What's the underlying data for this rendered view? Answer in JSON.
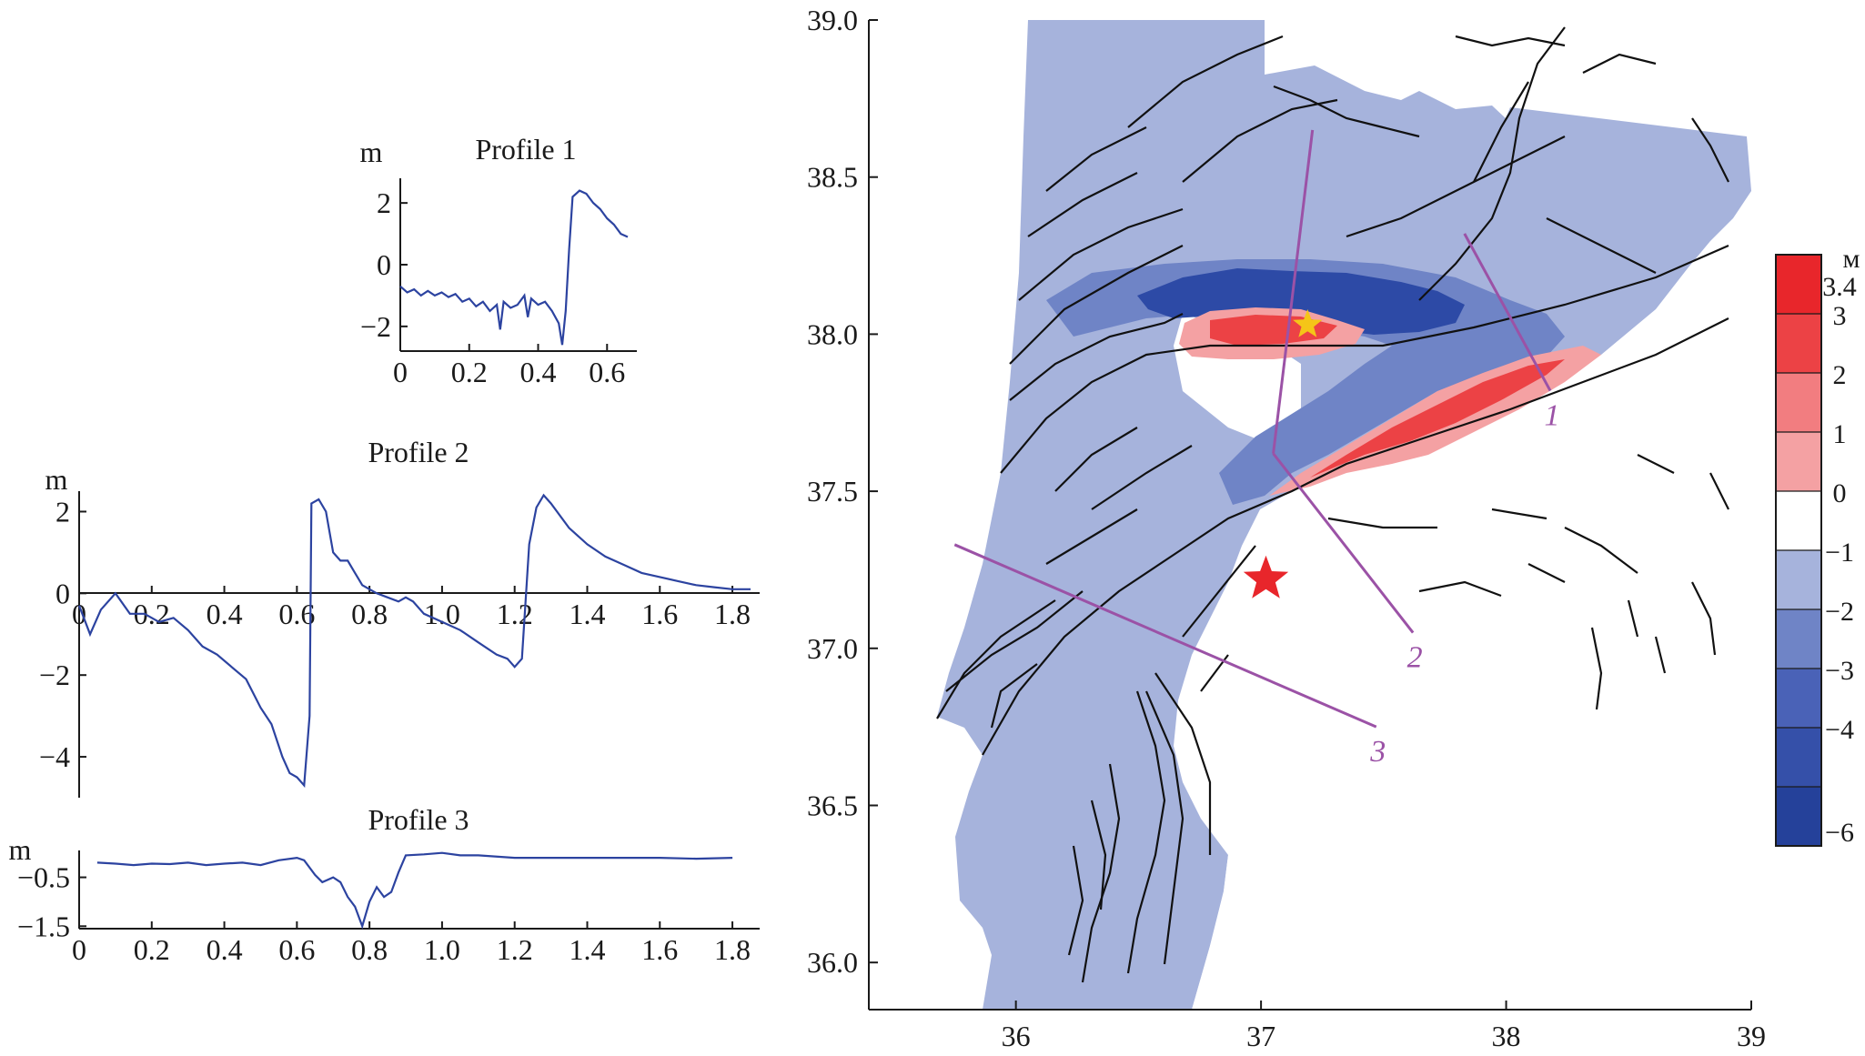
{
  "profiles": [
    {
      "title": "Profile 1",
      "unit": "m",
      "x_ticks": [
        0,
        0.2,
        0.4,
        0.6
      ],
      "x_tick_labels": [
        "0",
        "0.2",
        "0.4",
        "0.6"
      ],
      "y_ticks": [
        2,
        0,
        -2
      ],
      "y_tick_labels": [
        "2",
        "0",
        "−2"
      ],
      "xlim": [
        0,
        0.66
      ],
      "ylim": [
        -2.8,
        2.8
      ],
      "series": [
        [
          0,
          -0.7
        ],
        [
          0.02,
          -0.9
        ],
        [
          0.04,
          -0.8
        ],
        [
          0.06,
          -1.0
        ],
        [
          0.08,
          -0.85
        ],
        [
          0.1,
          -1.0
        ],
        [
          0.12,
          -0.9
        ],
        [
          0.14,
          -1.05
        ],
        [
          0.16,
          -0.95
        ],
        [
          0.18,
          -1.2
        ],
        [
          0.2,
          -1.1
        ],
        [
          0.22,
          -1.35
        ],
        [
          0.24,
          -1.2
        ],
        [
          0.26,
          -1.5
        ],
        [
          0.28,
          -1.3
        ],
        [
          0.29,
          -2.1
        ],
        [
          0.3,
          -1.2
        ],
        [
          0.32,
          -1.4
        ],
        [
          0.34,
          -1.3
        ],
        [
          0.36,
          -1.0
        ],
        [
          0.37,
          -1.7
        ],
        [
          0.38,
          -1.1
        ],
        [
          0.4,
          -1.3
        ],
        [
          0.42,
          -1.2
        ],
        [
          0.44,
          -1.5
        ],
        [
          0.46,
          -1.9
        ],
        [
          0.47,
          -2.6
        ],
        [
          0.48,
          -1.5
        ],
        [
          0.49,
          0.5
        ],
        [
          0.5,
          2.2
        ],
        [
          0.52,
          2.4
        ],
        [
          0.54,
          2.3
        ],
        [
          0.56,
          2.0
        ],
        [
          0.58,
          1.8
        ],
        [
          0.6,
          1.5
        ],
        [
          0.62,
          1.3
        ],
        [
          0.64,
          1.0
        ],
        [
          0.66,
          0.9
        ]
      ]
    },
    {
      "title": "Profile 2",
      "unit": "m",
      "x_ticks": [
        0,
        0.2,
        0.4,
        0.6,
        0.8,
        1.0,
        1.2,
        1.4,
        1.6,
        1.8
      ],
      "x_tick_labels": [
        "0",
        "0.2",
        "0.4",
        "0.6",
        "0.8",
        "1.0",
        "1.2",
        "1.4",
        "1.6",
        "1.8"
      ],
      "y_ticks": [
        2,
        0,
        -2,
        -4
      ],
      "y_tick_labels": [
        "2",
        "0",
        "−2",
        "−4"
      ],
      "xlim": [
        0,
        1.85
      ],
      "ylim": [
        -5.0,
        2.5
      ],
      "series": [
        [
          0,
          -0.3
        ],
        [
          0.03,
          -1.0
        ],
        [
          0.06,
          -0.4
        ],
        [
          0.1,
          0.0
        ],
        [
          0.14,
          -0.5
        ],
        [
          0.18,
          -0.5
        ],
        [
          0.22,
          -0.7
        ],
        [
          0.26,
          -0.6
        ],
        [
          0.3,
          -0.9
        ],
        [
          0.34,
          -1.3
        ],
        [
          0.38,
          -1.5
        ],
        [
          0.42,
          -1.8
        ],
        [
          0.46,
          -2.1
        ],
        [
          0.5,
          -2.8
        ],
        [
          0.53,
          -3.2
        ],
        [
          0.56,
          -4.0
        ],
        [
          0.58,
          -4.4
        ],
        [
          0.6,
          -4.5
        ],
        [
          0.62,
          -4.7
        ],
        [
          0.635,
          -3.0
        ],
        [
          0.64,
          2.2
        ],
        [
          0.66,
          2.3
        ],
        [
          0.68,
          2.0
        ],
        [
          0.7,
          1.0
        ],
        [
          0.72,
          0.8
        ],
        [
          0.74,
          0.8
        ],
        [
          0.76,
          0.5
        ],
        [
          0.78,
          0.2
        ],
        [
          0.8,
          0.1
        ],
        [
          0.82,
          0.0
        ],
        [
          0.85,
          -0.1
        ],
        [
          0.88,
          -0.2
        ],
        [
          0.9,
          -0.1
        ],
        [
          0.92,
          -0.2
        ],
        [
          0.95,
          -0.5
        ],
        [
          1.0,
          -0.7
        ],
        [
          1.05,
          -0.9
        ],
        [
          1.1,
          -1.2
        ],
        [
          1.15,
          -1.5
        ],
        [
          1.18,
          -1.6
        ],
        [
          1.2,
          -1.8
        ],
        [
          1.22,
          -1.6
        ],
        [
          1.24,
          1.2
        ],
        [
          1.26,
          2.1
        ],
        [
          1.28,
          2.4
        ],
        [
          1.3,
          2.2
        ],
        [
          1.35,
          1.6
        ],
        [
          1.4,
          1.2
        ],
        [
          1.45,
          0.9
        ],
        [
          1.5,
          0.7
        ],
        [
          1.55,
          0.5
        ],
        [
          1.6,
          0.4
        ],
        [
          1.65,
          0.3
        ],
        [
          1.7,
          0.2
        ],
        [
          1.75,
          0.15
        ],
        [
          1.8,
          0.1
        ],
        [
          1.85,
          0.1
        ]
      ]
    },
    {
      "title": "Profile 3",
      "unit": "m",
      "x_ticks": [
        0,
        0.2,
        0.4,
        0.6,
        0.8,
        1.0,
        1.2,
        1.4,
        1.6,
        1.8
      ],
      "x_tick_labels": [
        "0",
        "0.2",
        "0.4",
        "0.6",
        "0.8",
        "1.0",
        "1.2",
        "1.4",
        "1.6",
        "1.8"
      ],
      "y_ticks": [
        -0.5,
        -1.5
      ],
      "y_tick_labels": [
        "−0.5",
        "−1.5"
      ],
      "xlim": [
        0,
        1.85
      ],
      "ylim": [
        -1.55,
        0.05
      ],
      "series": [
        [
          0.05,
          -0.2
        ],
        [
          0.1,
          -0.22
        ],
        [
          0.15,
          -0.25
        ],
        [
          0.2,
          -0.22
        ],
        [
          0.25,
          -0.23
        ],
        [
          0.3,
          -0.2
        ],
        [
          0.35,
          -0.25
        ],
        [
          0.4,
          -0.22
        ],
        [
          0.45,
          -0.2
        ],
        [
          0.5,
          -0.25
        ],
        [
          0.55,
          -0.15
        ],
        [
          0.6,
          -0.1
        ],
        [
          0.62,
          -0.15
        ],
        [
          0.65,
          -0.45
        ],
        [
          0.67,
          -0.6
        ],
        [
          0.7,
          -0.5
        ],
        [
          0.72,
          -0.6
        ],
        [
          0.74,
          -0.9
        ],
        [
          0.76,
          -1.1
        ],
        [
          0.78,
          -1.5
        ],
        [
          0.8,
          -1.0
        ],
        [
          0.82,
          -0.7
        ],
        [
          0.84,
          -0.9
        ],
        [
          0.86,
          -0.8
        ],
        [
          0.88,
          -0.4
        ],
        [
          0.9,
          -0.05
        ],
        [
          0.95,
          -0.03
        ],
        [
          1.0,
          0.0
        ],
        [
          1.05,
          -0.05
        ],
        [
          1.1,
          -0.05
        ],
        [
          1.2,
          -0.1
        ],
        [
          1.3,
          -0.1
        ],
        [
          1.4,
          -0.1
        ],
        [
          1.5,
          -0.1
        ],
        [
          1.6,
          -0.1
        ],
        [
          1.7,
          -0.12
        ],
        [
          1.8,
          -0.1
        ]
      ]
    }
  ],
  "map": {
    "y_ticks": [
      39.0,
      38.5,
      38.0,
      37.5,
      37.0,
      36.5,
      36.0
    ],
    "y_tick_labels": [
      "39.0",
      "38.5",
      "38.0",
      "37.5",
      "37.0",
      "36.5",
      "36.0"
    ],
    "x_ticks": [
      36,
      37,
      38,
      39
    ],
    "x_tick_labels": [
      "36",
      "37",
      "38",
      "39"
    ],
    "xlim": [
      35.4,
      39.0
    ],
    "ylim": [
      35.85,
      39.0
    ],
    "profile_lines": [
      {
        "label": "1",
        "start": [
          37.83,
          38.32
        ],
        "end": [
          38.18,
          37.82
        ]
      },
      {
        "label": "2",
        "start": [
          37.05,
          37.62
        ],
        "end": [
          37.62,
          37.05
        ]
      },
      {
        "label": "3",
        "start": [
          35.75,
          37.33
        ],
        "end": [
          37.47,
          36.75
        ]
      },
      {
        "label": "",
        "start": [
          37.21,
          38.65
        ],
        "end": [
          37.05,
          37.62
        ]
      }
    ],
    "epicenters": [
      {
        "name": "main",
        "lon": 37.02,
        "lat": 37.22,
        "color": "#e8262b"
      },
      {
        "name": "second",
        "lon": 37.19,
        "lat": 38.03,
        "color": "#f5c518"
      }
    ],
    "colors": {
      "profile_line": "#9b52a6",
      "fault": "#111111"
    }
  },
  "colorbar": {
    "unit": "м",
    "tick_labels": [
      "3.4",
      "3",
      "2",
      "1",
      "0",
      "−1",
      "−2",
      "−3",
      "−4",
      "−6"
    ],
    "bins": [
      "#e8262b",
      "#ec4245",
      "#f27d80",
      "#f4a1a3",
      "#ffffff",
      "#a6b3dc",
      "#6f84c6",
      "#4a62b7",
      "#3550a9",
      "#25419a"
    ]
  }
}
